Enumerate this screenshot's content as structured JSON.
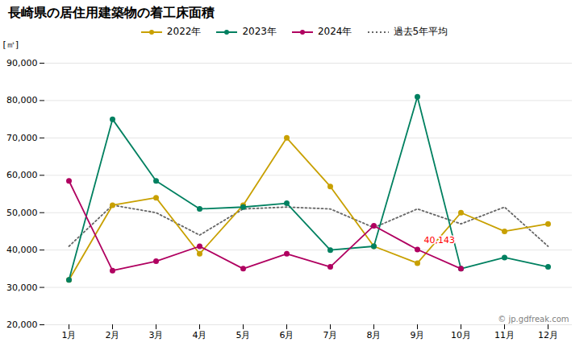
{
  "chart_data": {
    "type": "line",
    "title": "長崎県の居住用建築物の着工床面積",
    "ylabel": "[㎡]",
    "categories": [
      "1月",
      "2月",
      "3月",
      "4月",
      "5月",
      "6月",
      "7月",
      "8月",
      "9月",
      "10月",
      "11月",
      "12月"
    ],
    "series": [
      {
        "name": "2022年",
        "color": "#c8a000",
        "marker": "circle",
        "line_style": "solid",
        "values": [
          32000,
          52000,
          54000,
          39000,
          52000,
          70000,
          57000,
          41000,
          36500,
          50000,
          45000,
          47000
        ]
      },
      {
        "name": "2023年",
        "color": "#008060",
        "marker": "circle",
        "line_style": "solid",
        "values": [
          32000,
          75000,
          58500,
          51000,
          51500,
          52500,
          40000,
          41000,
          81000,
          35000,
          38000,
          35500
        ]
      },
      {
        "name": "2024年",
        "color": "#b00060",
        "marker": "circle",
        "line_style": "solid",
        "values": [
          58500,
          34500,
          37000,
          41000,
          35000,
          39000,
          35500,
          46500,
          40143,
          35000,
          null,
          null
        ]
      },
      {
        "name": "過去5年平均",
        "color": "#666666",
        "line_style": "dotted",
        "values": [
          41000,
          52000,
          50000,
          44000,
          51000,
          51500,
          51000,
          46000,
          51000,
          47000,
          51500,
          41000
        ]
      }
    ],
    "ylim": [
      20000,
      90000
    ],
    "yticks": [
      {
        "value": 20000,
        "label": "20,000"
      },
      {
        "value": 30000,
        "label": "30,000"
      },
      {
        "value": 40000,
        "label": "40,000"
      },
      {
        "value": 50000,
        "label": "50,000"
      },
      {
        "value": 60000,
        "label": "60,000"
      },
      {
        "value": 70000,
        "label": "70,000"
      },
      {
        "value": 80000,
        "label": "80,000"
      },
      {
        "value": 90000,
        "label": "90,000"
      }
    ],
    "grid": true,
    "legend": "top",
    "annotations": [
      {
        "text": "40,143",
        "x": "9月",
        "y": 40143,
        "color": "red"
      },
      {
        "text": "© jp.gdfreak.com",
        "color": "gray"
      }
    ]
  }
}
